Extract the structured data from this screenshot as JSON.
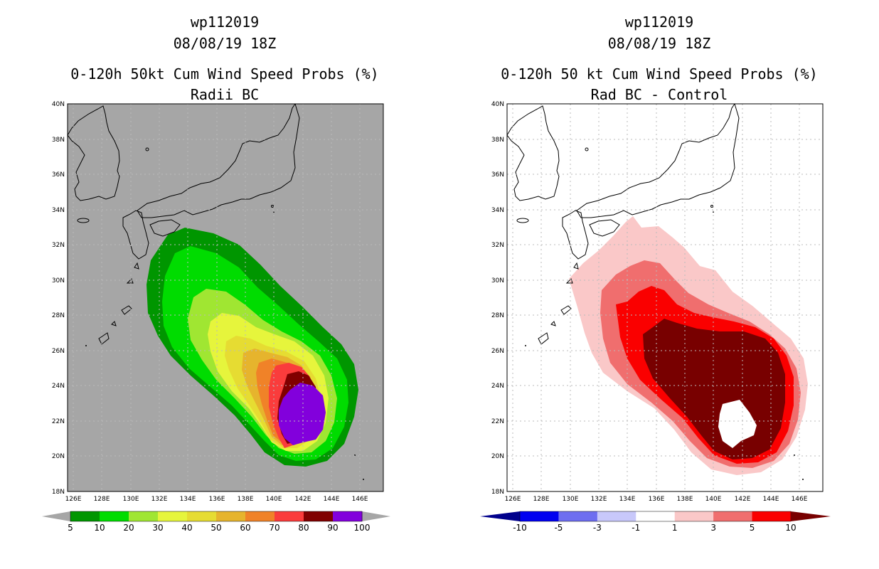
{
  "chart_data": [
    {
      "type": "contour-map",
      "storm_id": "wp112019",
      "datetime": "08/08/19 18Z",
      "title": "0-120h 50kt Cum Wind Speed Probs (%)",
      "subtitle": "Radii BC",
      "background": "#a6a6a6",
      "x_ticks": [
        "126E",
        "128E",
        "130E",
        "132E",
        "134E",
        "136E",
        "138E",
        "140E",
        "142E",
        "144E",
        "146E"
      ],
      "y_ticks": [
        "18N",
        "20N",
        "22N",
        "24N",
        "26N",
        "28N",
        "30N",
        "32N",
        "34N",
        "36N",
        "38N",
        "40N"
      ],
      "lon_range": [
        125.5,
        147
      ],
      "lat_range": [
        18,
        40
      ],
      "colorbar": {
        "labels": [
          "5",
          "10",
          "20",
          "30",
          "40",
          "50",
          "60",
          "70",
          "80",
          "90",
          "100"
        ],
        "colors": [
          "#009600",
          "#00dc00",
          "#a0e632",
          "#e6f53c",
          "#e6dc32",
          "#e6b42d",
          "#f08228",
          "#fa3c3c",
          "#800000",
          "#8200dc"
        ],
        "end_colors": [
          "#a6a6a6",
          "#a6a6a6"
        ]
      },
      "contours": [
        {
          "level": 5,
          "color": "#009600"
        },
        {
          "level": 10,
          "color": "#00dc00"
        },
        {
          "level": 20,
          "color": "#a0e632"
        },
        {
          "level": 30,
          "color": "#e6f53c"
        },
        {
          "level": 40,
          "color": "#e6dc32"
        },
        {
          "level": 50,
          "color": "#e6b42d"
        },
        {
          "level": 60,
          "color": "#f08228"
        },
        {
          "level": 70,
          "color": "#fa3c3c"
        },
        {
          "level": 80,
          "color": "#800000"
        },
        {
          "level": 90,
          "color": "#8200dc"
        }
      ]
    },
    {
      "type": "contour-map",
      "storm_id": "wp112019",
      "datetime": "08/08/19 18Z",
      "title": "0-120h 50 kt Cum Wind Speed Probs (%)",
      "subtitle": "Rad BC - Control",
      "background": "#ffffff",
      "x_ticks": [
        "126E",
        "128E",
        "130E",
        "132E",
        "134E",
        "136E",
        "138E",
        "140E",
        "142E",
        "144E",
        "146E"
      ],
      "y_ticks": [
        "18N",
        "20N",
        "22N",
        "24N",
        "26N",
        "28N",
        "30N",
        "32N",
        "34N",
        "36N",
        "38N",
        "40N"
      ],
      "lon_range": [
        125.5,
        147
      ],
      "lat_range": [
        18,
        40
      ],
      "colorbar": {
        "labels": [
          "-10",
          "-5",
          "-3",
          "-1",
          "1",
          "3",
          "5",
          "10"
        ],
        "colors": [
          "#0000f0",
          "#6e6ef0",
          "#c8c8fa",
          "#ffffff",
          "#fac8c8",
          "#f06e6e",
          "#fa0000"
        ],
        "end_colors": [
          "#00008c",
          "#780000"
        ]
      },
      "contours": [
        {
          "level": 1,
          "color": "#fac8c8"
        },
        {
          "level": 3,
          "color": "#f06e6e"
        },
        {
          "level": 5,
          "color": "#fa0000"
        },
        {
          "level": 10,
          "color": "#780000"
        },
        {
          "level": -1,
          "color": "#ffffff"
        }
      ]
    }
  ]
}
